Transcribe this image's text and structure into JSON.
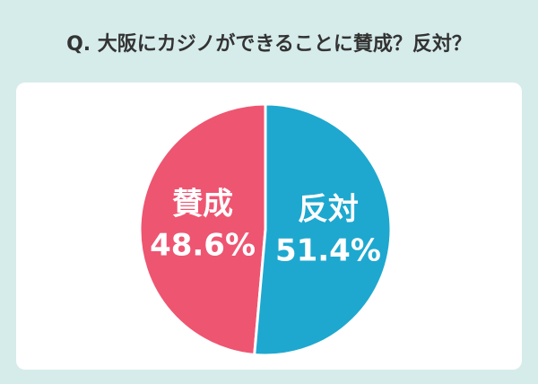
{
  "chart_data": {
    "type": "pie",
    "title": "Q. 大阪にカジノができることに賛成？反対？",
    "categories": [
      "賛成",
      "反対"
    ],
    "values": [
      48.6,
      51.4
    ],
    "value_labels": [
      "48.6%",
      "51.4%"
    ],
    "colors": [
      "#ee5571",
      "#1ea8cf"
    ]
  }
}
